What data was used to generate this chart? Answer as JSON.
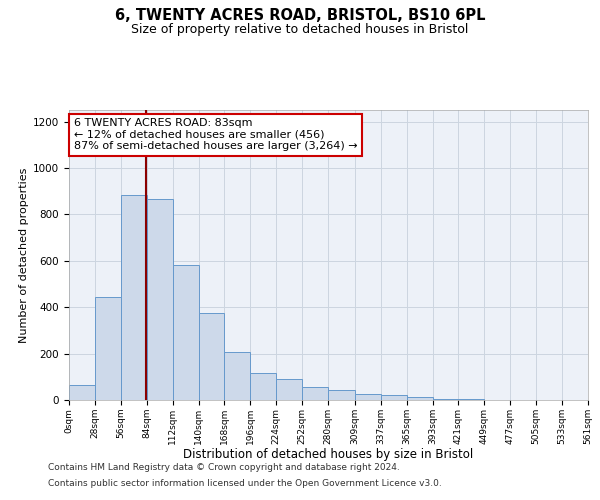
{
  "title": "6, TWENTY ACRES ROAD, BRISTOL, BS10 6PL",
  "subtitle": "Size of property relative to detached houses in Bristol",
  "xlabel": "Distribution of detached houses by size in Bristol",
  "ylabel": "Number of detached properties",
  "bin_edges": [
    0,
    28,
    56,
    84,
    112,
    140,
    168,
    196,
    224,
    252,
    280,
    309,
    337,
    365,
    393,
    421,
    449,
    477,
    505,
    533,
    561
  ],
  "bar_heights": [
    65,
    445,
    885,
    865,
    580,
    375,
    205,
    115,
    90,
    55,
    45,
    25,
    20,
    15,
    5,
    3,
    2,
    2,
    2,
    1
  ],
  "bar_facecolor": "#cdd9ea",
  "bar_edgecolor": "#6699cc",
  "vline_x": 83,
  "vline_color": "#8b0000",
  "annotation_text": "6 TWENTY ACRES ROAD: 83sqm\n← 12% of detached houses are smaller (456)\n87% of semi-detached houses are larger (3,264) →",
  "annotation_box_edgecolor": "#cc0000",
  "annotation_box_facecolor": "#ffffff",
  "ylim": [
    0,
    1250
  ],
  "yticks": [
    0,
    200,
    400,
    600,
    800,
    1000,
    1200
  ],
  "tick_labels": [
    "0sqm",
    "28sqm",
    "56sqm",
    "84sqm",
    "112sqm",
    "140sqm",
    "168sqm",
    "196sqm",
    "224sqm",
    "252sqm",
    "280sqm",
    "309sqm",
    "337sqm",
    "365sqm",
    "393sqm",
    "421sqm",
    "449sqm",
    "477sqm",
    "505sqm",
    "533sqm",
    "561sqm"
  ],
  "footer_line1": "Contains HM Land Registry data © Crown copyright and database right 2024.",
  "footer_line2": "Contains public sector information licensed under the Open Government Licence v3.0.",
  "grid_color": "#ccd5e0",
  "bg_color": "#edf1f8",
  "title_fontsize": 10.5,
  "subtitle_fontsize": 9,
  "xlabel_fontsize": 8.5,
  "ylabel_fontsize": 8,
  "annotation_fontsize": 8,
  "footer_fontsize": 6.5
}
